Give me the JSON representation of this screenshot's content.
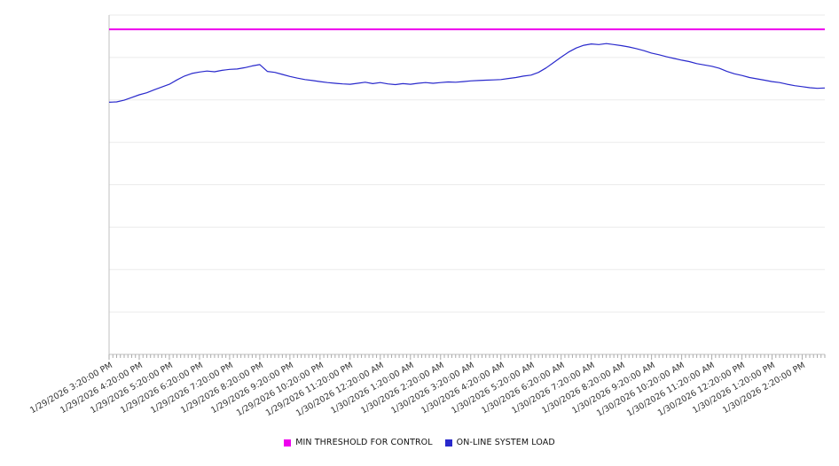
{
  "colors": {
    "background": "#ffffff",
    "grid": "#ebebeb",
    "axis": "#c0c0c0",
    "tick": "#aaaaaa",
    "label_text": "#333333",
    "threshold": "#ee00ee",
    "load": "#2929cc"
  },
  "legend": {
    "items": [
      {
        "label": "MIN THRESHOLD FOR CONTROL",
        "color": "#ee00ee"
      },
      {
        "label": "ON-LINE SYSTEM LOAD",
        "color": "#2929cc"
      }
    ]
  },
  "chart_data": {
    "type": "line",
    "title": "",
    "xlabel": "",
    "ylabel": "",
    "ylim": [
      0,
      100
    ],
    "grid": true,
    "gridline_divisions": 8,
    "legend_position": "bottom",
    "y_axis_labels_visible": false,
    "points_per_hour": 4,
    "x_tick_labels": [
      "1/29/2026 3:20:00 PM",
      "1/29/2026 4:20:00 PM",
      "1/29/2026 5:20:00 PM",
      "1/29/2026 6:20:00 PM",
      "1/29/2026 7:20:00 PM",
      "1/29/2026 8:20:00 PM",
      "1/29/2026 9:20:00 PM",
      "1/29/2026 10:20:00 PM",
      "1/29/2026 11:20:00 PM",
      "1/30/2026 12:20:00 AM",
      "1/30/2026 1:20:00 AM",
      "1/30/2026 2:20:00 AM",
      "1/30/2026 3:20:00 AM",
      "1/30/2026 4:20:00 AM",
      "1/30/2026 5:20:00 AM",
      "1/30/2026 6:20:00 AM",
      "1/30/2026 7:20:00 AM",
      "1/30/2026 8:20:00 AM",
      "1/30/2026 9:20:00 AM",
      "1/30/2026 10:20:00 AM",
      "1/30/2026 11:20:00 AM",
      "1/30/2026 12:20:00 PM",
      "1/30/2026 1:20:00 PM",
      "1/30/2026 2:20:00 PM"
    ],
    "series": [
      {
        "name": "MIN THRESHOLD FOR CONTROL",
        "type": "constant",
        "value": 95.8,
        "color": "#ee00ee"
      },
      {
        "name": "ON-LINE SYSTEM LOAD",
        "type": "line",
        "color": "#2929cc",
        "values": [
          74.3,
          74.4,
          74.9,
          75.7,
          76.5,
          77.1,
          78.0,
          78.8,
          79.6,
          80.9,
          82.0,
          82.8,
          83.2,
          83.5,
          83.3,
          83.7,
          84.0,
          84.1,
          84.5,
          85.0,
          85.4,
          83.4,
          83.1,
          82.5,
          81.9,
          81.4,
          81.0,
          80.7,
          80.4,
          80.1,
          79.9,
          79.7,
          79.6,
          79.9,
          80.2,
          79.8,
          80.1,
          79.7,
          79.5,
          79.8,
          79.6,
          79.9,
          80.1,
          79.9,
          80.1,
          80.3,
          80.2,
          80.4,
          80.6,
          80.7,
          80.8,
          80.9,
          81.0,
          81.3,
          81.6,
          82.0,
          82.3,
          83.1,
          84.4,
          86.0,
          87.6,
          89.1,
          90.3,
          91.1,
          91.5,
          91.3,
          91.6,
          91.3,
          91.0,
          90.6,
          90.1,
          89.5,
          88.8,
          88.3,
          87.7,
          87.2,
          86.7,
          86.3,
          85.7,
          85.3,
          84.9,
          84.3,
          83.4,
          82.7,
          82.2,
          81.6,
          81.2,
          80.8,
          80.4,
          80.1,
          79.6,
          79.2,
          78.9,
          78.6,
          78.4,
          78.5
        ]
      }
    ]
  }
}
